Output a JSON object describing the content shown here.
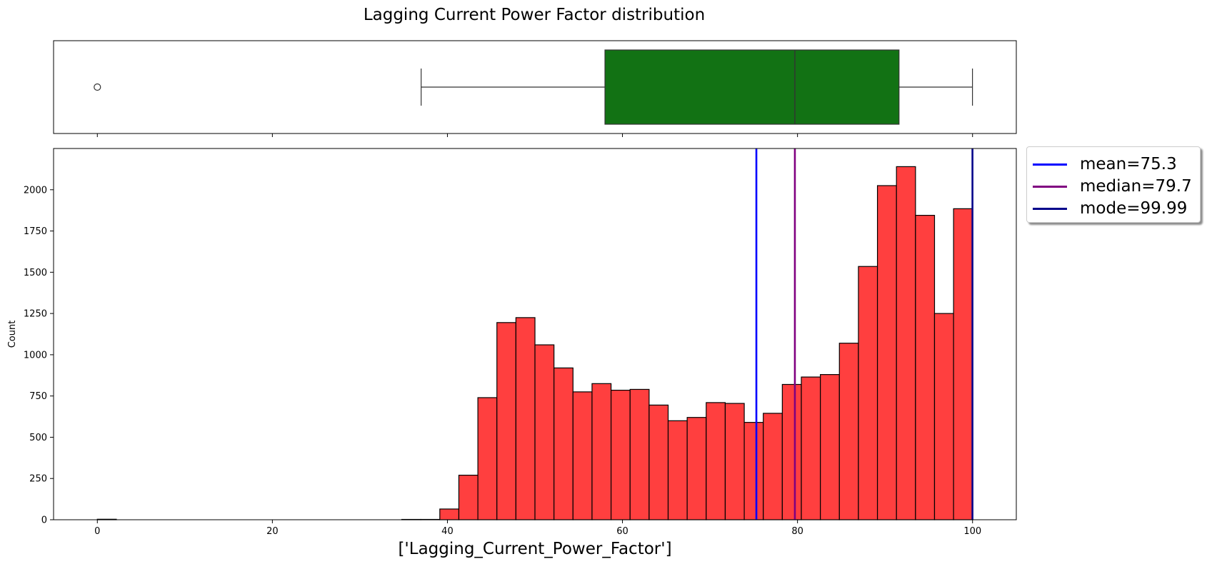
{
  "chart_data": [
    {
      "type": "box",
      "title": "Lagging Current Power Factor distribution",
      "box": {
        "whisker_low": 37.0,
        "q1": 58.0,
        "median": 79.7,
        "q3": 91.6,
        "whisker_high": 99.99,
        "outliers": [
          0.0
        ],
        "color": "#127214"
      },
      "xlim": [
        -5,
        105
      ]
    },
    {
      "type": "bar",
      "xlabel": "['Lagging_Current_Power_Factor']",
      "ylabel": "Count",
      "xlim": [
        -5,
        105
      ],
      "ylim": [
        0,
        2250
      ],
      "xticks": [
        0,
        20,
        40,
        60,
        80,
        100
      ],
      "yticks": [
        0,
        250,
        500,
        750,
        1000,
        1250,
        1500,
        1750,
        2000
      ],
      "bin_width": 2.174,
      "bin_start": 0,
      "bar_color": "#ff3f3f",
      "values": [
        3,
        0,
        0,
        0,
        0,
        0,
        0,
        0,
        0,
        0,
        0,
        0,
        0,
        0,
        0,
        0,
        2,
        2,
        65,
        270,
        740,
        1195,
        1225,
        1060,
        920,
        775,
        825,
        785,
        790,
        695,
        600,
        620,
        710,
        705,
        590,
        645,
        820,
        865,
        880,
        1070,
        1535,
        2025,
        2140,
        1845,
        1250,
        1885
      ],
      "lines": [
        {
          "name": "mean=75.3",
          "x": 75.3,
          "color": "#0000ff"
        },
        {
          "name": "median=79.7",
          "x": 79.7,
          "color": "#800080"
        },
        {
          "name": "mode=99.99",
          "x": 99.99,
          "color": "#00008b"
        }
      ]
    }
  ]
}
